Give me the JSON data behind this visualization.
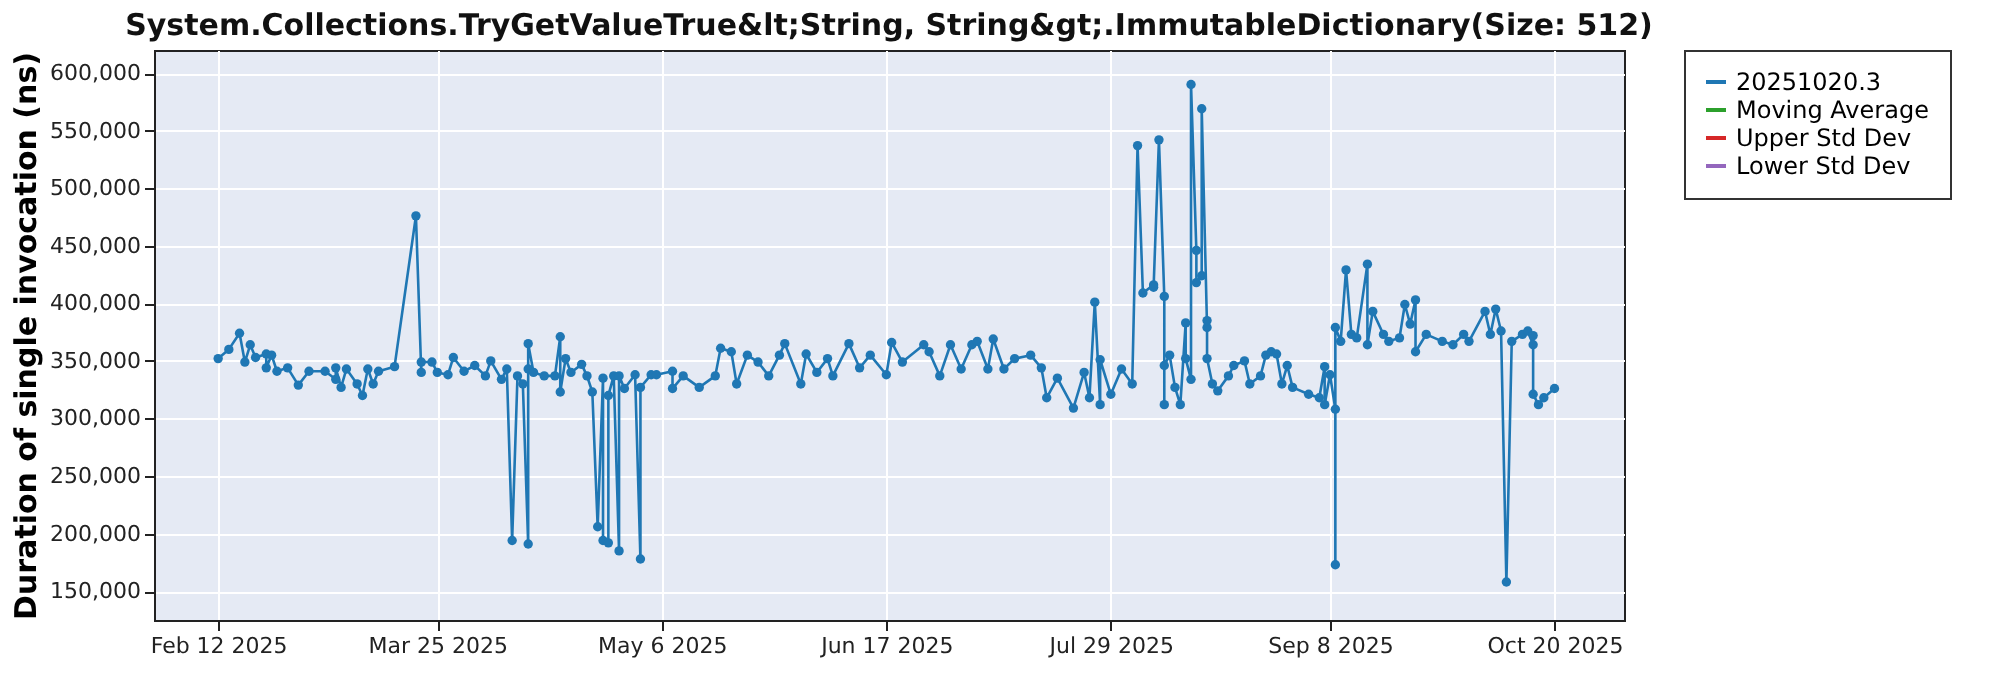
{
  "chart_data": {
    "type": "line",
    "title": "System.Collections.TryGetValueTrue&lt;String, String&gt;.ImmutableDictionary(Size: 512)",
    "ylabel": "Duration of single invocation (ns)",
    "xlim": [
      "2025-01-31",
      "2025-11-02"
    ],
    "xticks": [
      {
        "value": "2025-02-12",
        "label": "Feb 12 2025"
      },
      {
        "value": "2025-03-25",
        "label": "Mar 25 2025"
      },
      {
        "value": "2025-05-06",
        "label": "May 6 2025"
      },
      {
        "value": "2025-06-17",
        "label": "Jun 17 2025"
      },
      {
        "value": "2025-07-29",
        "label": "Jul 29 2025"
      },
      {
        "value": "2025-09-08",
        "label": "Sep 8 2025"
      },
      {
        "value": "2025-10-20",
        "label": "Oct 20 2025"
      }
    ],
    "ylim": [
      125000,
      620000
    ],
    "yticks": [
      {
        "value": 150000,
        "label": "150,000"
      },
      {
        "value": 200000,
        "label": "200,000"
      },
      {
        "value": 250000,
        "label": "250,000"
      },
      {
        "value": 300000,
        "label": "300,000"
      },
      {
        "value": 350000,
        "label": "350,000"
      },
      {
        "value": 400000,
        "label": "400,000"
      },
      {
        "value": 450000,
        "label": "450,000"
      },
      {
        "value": 500000,
        "label": "500,000"
      },
      {
        "value": 550000,
        "label": "550,000"
      },
      {
        "value": 600000,
        "label": "600,000"
      }
    ],
    "grid": true,
    "legend": "right",
    "marker": "circle",
    "line_style": "solid",
    "series": [
      {
        "name": "20251020.3",
        "color": "#1f77b4",
        "x": [
          "2025-02-12",
          "2025-02-14",
          "2025-02-16",
          "2025-02-17",
          "2025-02-18",
          "2025-02-19",
          "2025-02-21",
          "2025-02-21",
          "2025-02-22",
          "2025-02-23",
          "2025-02-25",
          "2025-02-27",
          "2025-03-01",
          "2025-03-04",
          "2025-03-06",
          "2025-03-06",
          "2025-03-07",
          "2025-03-08",
          "2025-03-10",
          "2025-03-11",
          "2025-03-12",
          "2025-03-13",
          "2025-03-14",
          "2025-03-17",
          "2025-03-21",
          "2025-03-22",
          "2025-03-22",
          "2025-03-24",
          "2025-03-25",
          "2025-03-27",
          "2025-03-28",
          "2025-03-30",
          "2025-04-01",
          "2025-04-03",
          "2025-04-04",
          "2025-04-06",
          "2025-04-07",
          "2025-04-08",
          "2025-04-09",
          "2025-04-10",
          "2025-04-11",
          "2025-04-11",
          "2025-04-11",
          "2025-04-12",
          "2025-04-14",
          "2025-04-16",
          "2025-04-17",
          "2025-04-17",
          "2025-04-18",
          "2025-04-19",
          "2025-04-21",
          "2025-04-22",
          "2025-04-23",
          "2025-04-24",
          "2025-04-25",
          "2025-04-25",
          "2025-04-26",
          "2025-04-26",
          "2025-04-27",
          "2025-04-28",
          "2025-04-28",
          "2025-04-29",
          "2025-05-01",
          "2025-05-02",
          "2025-05-02",
          "2025-05-04",
          "2025-05-05",
          "2025-05-08",
          "2025-05-08",
          "2025-05-10",
          "2025-05-13",
          "2025-05-16",
          "2025-05-17",
          "2025-05-19",
          "2025-05-20",
          "2025-05-22",
          "2025-05-24",
          "2025-05-26",
          "2025-05-28",
          "2025-05-29",
          "2025-06-01",
          "2025-06-02",
          "2025-06-04",
          "2025-06-06",
          "2025-06-07",
          "2025-06-10",
          "2025-06-12",
          "2025-06-14",
          "2025-06-17",
          "2025-06-18",
          "2025-06-20",
          "2025-06-24",
          "2025-06-25",
          "2025-06-27",
          "2025-06-29",
          "2025-07-01",
          "2025-07-03",
          "2025-07-04",
          "2025-07-06",
          "2025-07-07",
          "2025-07-09",
          "2025-07-11",
          "2025-07-14",
          "2025-07-16",
          "2025-07-17",
          "2025-07-19",
          "2025-07-22",
          "2025-07-24",
          "2025-07-25",
          "2025-07-26",
          "2025-07-27",
          "2025-07-27",
          "2025-07-29",
          "2025-07-31",
          "2025-08-02",
          "2025-08-03",
          "2025-08-04",
          "2025-08-06",
          "2025-08-06",
          "2025-08-07",
          "2025-08-08",
          "2025-08-08",
          "2025-08-08",
          "2025-08-09",
          "2025-08-10",
          "2025-08-11",
          "2025-08-12",
          "2025-08-12",
          "2025-08-13",
          "2025-08-13",
          "2025-08-14",
          "2025-08-14",
          "2025-08-15",
          "2025-08-15",
          "2025-08-16",
          "2025-08-16",
          "2025-08-16",
          "2025-08-17",
          "2025-08-18",
          "2025-08-20",
          "2025-08-21",
          "2025-08-23",
          "2025-08-24",
          "2025-08-26",
          "2025-08-27",
          "2025-08-28",
          "2025-08-29",
          "2025-08-30",
          "2025-08-31",
          "2025-09-01",
          "2025-09-04",
          "2025-09-06",
          "2025-09-07",
          "2025-09-07",
          "2025-09-08",
          "2025-09-09",
          "2025-09-09",
          "2025-09-09",
          "2025-09-10",
          "2025-09-11",
          "2025-09-12",
          "2025-09-13",
          "2025-09-15",
          "2025-09-15",
          "2025-09-16",
          "2025-09-18",
          "2025-09-19",
          "2025-09-21",
          "2025-09-22",
          "2025-09-23",
          "2025-09-24",
          "2025-09-24",
          "2025-09-26",
          "2025-09-29",
          "2025-10-01",
          "2025-10-03",
          "2025-10-04",
          "2025-10-07",
          "2025-10-08",
          "2025-10-09",
          "2025-10-10",
          "2025-10-11",
          "2025-10-12",
          "2025-10-14",
          "2025-10-15",
          "2025-10-16",
          "2025-10-16",
          "2025-10-16",
          "2025-10-17",
          "2025-10-18",
          "2025-10-20"
        ],
        "values": [
          352000,
          360000,
          374000,
          349000,
          364000,
          353000,
          356000,
          344000,
          355000,
          341000,
          344000,
          329000,
          341000,
          341000,
          334000,
          344000,
          327000,
          343000,
          330000,
          320000,
          343000,
          330000,
          341000,
          345000,
          476000,
          340000,
          349000,
          349000,
          340000,
          338000,
          353000,
          341000,
          346000,
          337000,
          350000,
          334000,
          343000,
          194000,
          337000,
          330000,
          191000,
          343000,
          365000,
          340000,
          337000,
          337000,
          371000,
          323000,
          352000,
          340000,
          347000,
          337000,
          323000,
          206000,
          335000,
          194000,
          192000,
          320000,
          337000,
          185000,
          337000,
          326000,
          338000,
          178000,
          327000,
          338000,
          338000,
          341000,
          326000,
          337000,
          327000,
          337000,
          361000,
          358000,
          330000,
          355000,
          349000,
          337000,
          355000,
          365000,
          330000,
          356000,
          340000,
          352000,
          337000,
          365000,
          344000,
          355000,
          338000,
          366000,
          349000,
          364000,
          358000,
          337000,
          364000,
          343000,
          364000,
          367000,
          343000,
          369000,
          343000,
          352000,
          355000,
          344000,
          318000,
          335000,
          309000,
          340000,
          318000,
          401000,
          312000,
          351000,
          321000,
          343000,
          330000,
          537000,
          409000,
          416000,
          414000,
          542000,
          406000,
          312000,
          346000,
          355000,
          327000,
          312000,
          383000,
          352000,
          334000,
          590000,
          446000,
          418000,
          424000,
          569000,
          379000,
          385000,
          352000,
          330000,
          324000,
          337000,
          346000,
          350000,
          330000,
          337000,
          355000,
          358000,
          356000,
          330000,
          346000,
          327000,
          321000,
          318000,
          345000,
          312000,
          338000,
          308000,
          173000,
          379000,
          367000,
          429000,
          373000,
          370000,
          434000,
          364000,
          393000,
          373000,
          367000,
          370000,
          399000,
          382000,
          403000,
          358000,
          373000,
          367000,
          364000,
          373000,
          367000,
          393000,
          373000,
          395000,
          376000,
          158000,
          367000,
          373000,
          376000,
          364000,
          372000,
          321000,
          312000,
          318000,
          326000
        ]
      },
      {
        "name": "Moving Average",
        "color": "#2ca02c"
      },
      {
        "name": "Upper Std Dev",
        "color": "#d62728"
      },
      {
        "name": "Lower Std Dev",
        "color": "#9467bd"
      }
    ]
  }
}
